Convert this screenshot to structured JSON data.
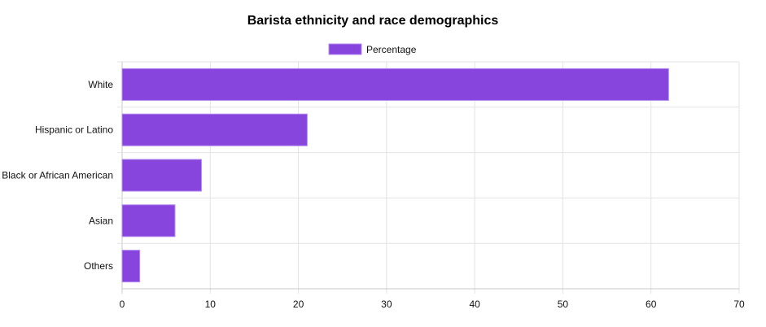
{
  "chart_data": {
    "type": "bar",
    "orientation": "horizontal",
    "title": "Barista ethnicity and race demographics",
    "categories": [
      "White",
      "Hispanic or Latino",
      "Black or African American",
      "Asian",
      "Others"
    ],
    "series": [
      {
        "name": "Percentage",
        "values": [
          62,
          21,
          9,
          6,
          2
        ]
      }
    ],
    "xlabel": "",
    "ylabel": "",
    "xlim": [
      0,
      70
    ],
    "x_ticks": [
      0,
      10,
      20,
      30,
      40,
      50,
      60,
      70
    ],
    "grid": true,
    "legend": "top-center",
    "colors": {
      "bar_fill": "#8845de",
      "bar_stroke": "#b58cf0",
      "grid": "#e3e3e3",
      "axis": "#c8c8c8"
    }
  }
}
